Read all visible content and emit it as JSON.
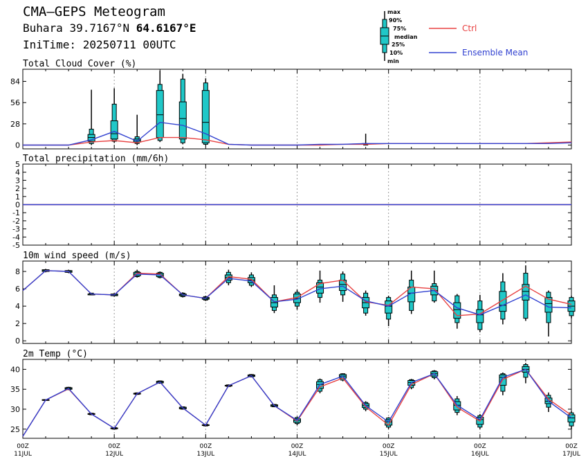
{
  "header": {
    "title": "CMA—GEPS Meteogram",
    "location_name": "Buhara",
    "lat": "39.7167°N",
    "lon": "64.6167°E",
    "init_time": "IniTime: 20250711 00UTC"
  },
  "legend": {
    "box_labels": [
      "max",
      "90%",
      "75%",
      "median",
      "25%",
      "10%",
      "min"
    ],
    "ctrl_label": "Ctrl",
    "mean_label": "Ensemble Mean",
    "ctrl_color": "#e84040",
    "mean_color": "#3040d0",
    "box_color": "#20c8c8"
  },
  "x_axis": {
    "ticks": [
      {
        "step": 0,
        "top": "00Z",
        "bottom": "11JUL"
      },
      {
        "step": 4,
        "top": "00Z",
        "bottom": "12JUL"
      },
      {
        "step": 8,
        "top": "00Z",
        "bottom": "13JUL"
      },
      {
        "step": 12,
        "top": "00Z",
        "bottom": "14JUL"
      },
      {
        "step": 16,
        "top": "00Z",
        "bottom": "15JUL"
      },
      {
        "step": 20,
        "top": "00Z",
        "bottom": "16JUL"
      },
      {
        "step": 24,
        "top": "00Z",
        "bottom": "17JUL"
      }
    ],
    "step_hours": 6
  },
  "chart_data": [
    {
      "type": "box",
      "title": "Total Cloud Cover (%)",
      "ylim": [
        -5,
        100
      ],
      "yticks": [
        0,
        28,
        56,
        84
      ],
      "steps": [
        0,
        1,
        2,
        3,
        4,
        5,
        6,
        7,
        8,
        9,
        10,
        11,
        12,
        13,
        14,
        15,
        16,
        17,
        18,
        19,
        20,
        21,
        22,
        23,
        24
      ],
      "ctrl": [
        0,
        0,
        0,
        4,
        6,
        3,
        10,
        10,
        7,
        1,
        0,
        0,
        0,
        0,
        1,
        1,
        2,
        2,
        2,
        2,
        2,
        2,
        2,
        3,
        4
      ],
      "mean": [
        0,
        0,
        0,
        7,
        18,
        5,
        30,
        26,
        15,
        1,
        0,
        0,
        0,
        1,
        1,
        2,
        2,
        2,
        2,
        2,
        2,
        2,
        2,
        2,
        3
      ],
      "boxes": [
        {
          "step": 3,
          "min": 0,
          "p10": 2,
          "p25": 5,
          "median": 10,
          "p75": 14,
          "p90": 21,
          "max": 73
        },
        {
          "step": 4,
          "min": 3,
          "p10": 5,
          "p25": 8,
          "median": 15,
          "p75": 32,
          "p90": 54,
          "max": 75
        },
        {
          "step": 5,
          "min": 0,
          "p10": 2,
          "p25": 4,
          "median": 6,
          "p75": 8,
          "p90": 11,
          "max": 40
        },
        {
          "step": 6,
          "min": 4,
          "p10": 6,
          "p25": 10,
          "median": 40,
          "p75": 72,
          "p90": 80,
          "max": 98
        },
        {
          "step": 7,
          "min": 1,
          "p10": 3,
          "p25": 8,
          "median": 35,
          "p75": 57,
          "p90": 87,
          "max": 94
        },
        {
          "step": 8,
          "min": 0,
          "p10": 1,
          "p25": 3,
          "median": 30,
          "p75": 72,
          "p90": 82,
          "max": 88
        },
        {
          "step": 15,
          "min": 0,
          "p10": 0,
          "p25": 1,
          "median": 1,
          "p75": 2,
          "p90": 2,
          "max": 15
        }
      ]
    },
    {
      "type": "line",
      "title": "Total precipitation (mm/6h)",
      "ylim": [
        -5,
        5
      ],
      "yticks": [
        -5,
        -4,
        -3,
        -2,
        -1,
        0,
        1,
        2,
        3,
        4,
        5
      ],
      "steps": [
        0,
        1,
        2,
        3,
        4,
        5,
        6,
        7,
        8,
        9,
        10,
        11,
        12,
        13,
        14,
        15,
        16,
        17,
        18,
        19,
        20,
        21,
        22,
        23,
        24
      ],
      "ctrl": [
        0,
        0,
        0,
        0,
        0,
        0,
        0,
        0,
        0,
        0,
        0,
        0,
        0,
        0,
        0,
        0,
        0,
        0,
        0,
        0,
        0,
        0,
        0,
        0,
        0
      ],
      "mean": [
        0,
        0,
        0,
        0,
        0,
        0,
        0,
        0,
        0,
        0,
        0,
        0,
        0,
        0,
        0,
        0,
        0,
        0,
        0,
        0,
        0,
        0,
        0,
        0,
        0
      ],
      "boxes": []
    },
    {
      "type": "box",
      "title": "10m wind speed (m/s)",
      "ylim": [
        -0.3,
        9.2
      ],
      "yticks": [
        0,
        2,
        4,
        6,
        8
      ],
      "steps": [
        0,
        1,
        2,
        3,
        4,
        5,
        6,
        7,
        8,
        9,
        10,
        11,
        12,
        13,
        14,
        15,
        16,
        17,
        18,
        19,
        20,
        21,
        22,
        23,
        24
      ],
      "ctrl": [
        5.8,
        8.1,
        8.0,
        5.4,
        5.3,
        7.8,
        7.7,
        5.3,
        4.9,
        7.4,
        7.1,
        4.5,
        5.0,
        6.6,
        7.0,
        4.5,
        4.1,
        6.2,
        6.0,
        2.9,
        3.1,
        4.7,
        6.3,
        4.8,
        4.2
      ],
      "mean": [
        5.8,
        8.1,
        8.0,
        5.4,
        5.3,
        7.7,
        7.6,
        5.3,
        4.9,
        7.2,
        6.9,
        4.5,
        4.8,
        6.0,
        6.3,
        4.6,
        4.0,
        5.5,
        5.8,
        3.8,
        3.0,
        4.1,
        5.3,
        3.9,
        3.8
      ],
      "boxes": [
        {
          "step": 1,
          "min": 7.9,
          "p10": 8.0,
          "p25": 8.0,
          "median": 8.1,
          "p75": 8.2,
          "p90": 8.2,
          "max": 8.3
        },
        {
          "step": 2,
          "min": 7.8,
          "p10": 7.9,
          "p25": 7.9,
          "median": 8.0,
          "p75": 8.1,
          "p90": 8.1,
          "max": 8.2
        },
        {
          "step": 3,
          "min": 5.3,
          "p10": 5.3,
          "p25": 5.3,
          "median": 5.4,
          "p75": 5.4,
          "p90": 5.5,
          "max": 5.5
        },
        {
          "step": 4,
          "min": 5.1,
          "p10": 5.2,
          "p25": 5.2,
          "median": 5.3,
          "p75": 5.4,
          "p90": 5.4,
          "max": 5.5
        },
        {
          "step": 5,
          "min": 7.3,
          "p10": 7.4,
          "p25": 7.5,
          "median": 7.7,
          "p75": 7.9,
          "p90": 8.0,
          "max": 8.2
        },
        {
          "step": 6,
          "min": 7.2,
          "p10": 7.3,
          "p25": 7.4,
          "median": 7.6,
          "p75": 7.8,
          "p90": 7.9,
          "max": 8.0
        },
        {
          "step": 7,
          "min": 5.0,
          "p10": 5.1,
          "p25": 5.2,
          "median": 5.3,
          "p75": 5.4,
          "p90": 5.5,
          "max": 5.6
        },
        {
          "step": 8,
          "min": 4.6,
          "p10": 4.7,
          "p25": 4.8,
          "median": 4.9,
          "p75": 5.0,
          "p90": 5.1,
          "max": 5.2
        },
        {
          "step": 9,
          "min": 6.4,
          "p10": 6.7,
          "p25": 7.0,
          "median": 7.3,
          "p75": 7.6,
          "p90": 7.9,
          "max": 8.2
        },
        {
          "step": 10,
          "min": 6.2,
          "p10": 6.4,
          "p25": 6.7,
          "median": 7.0,
          "p75": 7.3,
          "p90": 7.6,
          "max": 7.9
        },
        {
          "step": 11,
          "min": 3.2,
          "p10": 3.5,
          "p25": 3.9,
          "median": 4.4,
          "p75": 5.0,
          "p90": 5.3,
          "max": 6.4
        },
        {
          "step": 12,
          "min": 3.6,
          "p10": 4.0,
          "p25": 4.4,
          "median": 4.9,
          "p75": 5.4,
          "p90": 5.6,
          "max": 5.9
        },
        {
          "step": 13,
          "min": 4.4,
          "p10": 5.0,
          "p25": 5.5,
          "median": 6.2,
          "p75": 6.7,
          "p90": 7.0,
          "max": 8.1
        },
        {
          "step": 14,
          "min": 4.5,
          "p10": 5.3,
          "p25": 5.8,
          "median": 6.5,
          "p75": 7.0,
          "p90": 7.7,
          "max": 8.0
        },
        {
          "step": 15,
          "min": 2.9,
          "p10": 3.2,
          "p25": 3.8,
          "median": 4.4,
          "p75": 5.0,
          "p90": 5.5,
          "max": 5.8
        },
        {
          "step": 16,
          "min": 1.7,
          "p10": 2.5,
          "p25": 3.2,
          "median": 4.0,
          "p75": 4.6,
          "p90": 5.0,
          "max": 5.2
        },
        {
          "step": 17,
          "min": 3.1,
          "p10": 3.5,
          "p25": 4.5,
          "median": 5.5,
          "p75": 6.2,
          "p90": 7.0,
          "max": 8.1
        },
        {
          "step": 18,
          "min": 4.4,
          "p10": 4.6,
          "p25": 5.3,
          "median": 5.8,
          "p75": 6.3,
          "p90": 6.6,
          "max": 8.1
        },
        {
          "step": 19,
          "min": 1.4,
          "p10": 2.1,
          "p25": 2.6,
          "median": 3.6,
          "p75": 4.4,
          "p90": 5.2,
          "max": 5.4
        },
        {
          "step": 20,
          "min": 1.0,
          "p10": 1.3,
          "p25": 2.1,
          "median": 3.0,
          "p75": 3.6,
          "p90": 4.6,
          "max": 5.3
        },
        {
          "step": 21,
          "min": 1.9,
          "p10": 2.5,
          "p25": 3.4,
          "median": 4.1,
          "p75": 5.7,
          "p90": 6.8,
          "max": 7.8
        },
        {
          "step": 22,
          "min": 2.3,
          "p10": 2.6,
          "p25": 4.7,
          "median": 5.7,
          "p75": 6.5,
          "p90": 7.8,
          "max": 8.7
        },
        {
          "step": 23,
          "min": 0.5,
          "p10": 2.1,
          "p25": 3.3,
          "median": 4.3,
          "p75": 5.0,
          "p90": 5.6,
          "max": 5.8
        },
        {
          "step": 24,
          "min": 2.6,
          "p10": 2.9,
          "p25": 3.4,
          "median": 4.0,
          "p75": 4.6,
          "p90": 5.0,
          "max": 5.2
        }
      ]
    },
    {
      "type": "box",
      "title": "2m Temp (°C)",
      "ylim": [
        22.7,
        42.5
      ],
      "yticks": [
        25,
        30,
        35,
        40
      ],
      "steps": [
        0,
        1,
        2,
        3,
        4,
        5,
        6,
        7,
        8,
        9,
        10,
        11,
        12,
        13,
        14,
        15,
        16,
        17,
        18,
        19,
        20,
        21,
        22,
        23,
        24
      ],
      "ctrl": [
        23.2,
        32.3,
        35.1,
        28.8,
        25.2,
        33.9,
        36.8,
        30.3,
        26.0,
        35.9,
        38.4,
        30.9,
        27.0,
        35.6,
        37.8,
        30.6,
        26.0,
        36.2,
        38.9,
        30.5,
        27.0,
        37.5,
        40.0,
        32.5,
        28.5
      ],
      "mean": [
        23.2,
        32.3,
        35.2,
        28.8,
        25.2,
        33.9,
        36.8,
        30.3,
        26.0,
        35.9,
        38.4,
        30.9,
        27.2,
        36.2,
        38.3,
        30.9,
        26.8,
        36.7,
        38.9,
        31.0,
        27.4,
        38.0,
        40.0,
        32.0,
        27.8
      ],
      "boxes": [
        {
          "step": 1,
          "min": 32.1,
          "p10": 32.2,
          "p25": 32.2,
          "median": 32.3,
          "p75": 32.4,
          "p90": 32.4,
          "max": 32.5
        },
        {
          "step": 2,
          "min": 34.8,
          "p10": 34.9,
          "p25": 35.0,
          "median": 35.2,
          "p75": 35.4,
          "p90": 35.5,
          "max": 35.6
        },
        {
          "step": 3,
          "min": 28.5,
          "p10": 28.6,
          "p25": 28.7,
          "median": 28.8,
          "p75": 28.9,
          "p90": 29.0,
          "max": 29.1
        },
        {
          "step": 4,
          "min": 24.9,
          "p10": 25.0,
          "p25": 25.1,
          "median": 25.2,
          "p75": 25.3,
          "p90": 25.4,
          "max": 25.5
        },
        {
          "step": 5,
          "min": 33.6,
          "p10": 33.7,
          "p25": 33.8,
          "median": 33.9,
          "p75": 34.0,
          "p90": 34.1,
          "max": 34.2
        },
        {
          "step": 6,
          "min": 36.4,
          "p10": 36.5,
          "p25": 36.6,
          "median": 36.8,
          "p75": 37.0,
          "p90": 37.1,
          "max": 37.2
        },
        {
          "step": 7,
          "min": 29.9,
          "p10": 30.0,
          "p25": 30.1,
          "median": 30.3,
          "p75": 30.5,
          "p90": 30.6,
          "max": 30.7
        },
        {
          "step": 8,
          "min": 25.7,
          "p10": 25.8,
          "p25": 25.9,
          "median": 26.0,
          "p75": 26.1,
          "p90": 26.2,
          "max": 26.3
        },
        {
          "step": 9,
          "min": 35.6,
          "p10": 35.7,
          "p25": 35.8,
          "median": 35.9,
          "p75": 36.0,
          "p90": 36.1,
          "max": 36.2
        },
        {
          "step": 10,
          "min": 38.0,
          "p10": 38.1,
          "p25": 38.2,
          "median": 38.4,
          "p75": 38.6,
          "p90": 38.7,
          "max": 38.8
        },
        {
          "step": 11,
          "min": 30.5,
          "p10": 30.6,
          "p25": 30.7,
          "median": 30.9,
          "p75": 31.1,
          "p90": 31.2,
          "max": 31.3
        },
        {
          "step": 12,
          "min": 26.0,
          "p10": 26.4,
          "p25": 26.7,
          "median": 27.2,
          "p75": 27.6,
          "p90": 27.9,
          "max": 28.2
        },
        {
          "step": 13,
          "min": 34.0,
          "p10": 34.5,
          "p25": 35.2,
          "median": 36.2,
          "p75": 36.9,
          "p90": 37.4,
          "max": 37.7
        },
        {
          "step": 14,
          "min": 37.0,
          "p10": 37.3,
          "p25": 37.8,
          "median": 38.3,
          "p75": 38.7,
          "p90": 38.9,
          "max": 39.0
        },
        {
          "step": 15,
          "min": 29.5,
          "p10": 30.0,
          "p25": 30.4,
          "median": 30.9,
          "p75": 31.4,
          "p90": 31.7,
          "max": 32.0
        },
        {
          "step": 16,
          "min": 25.0,
          "p10": 25.5,
          "p25": 26.0,
          "median": 26.8,
          "p75": 27.4,
          "p90": 27.8,
          "max": 28.0
        },
        {
          "step": 17,
          "min": 35.0,
          "p10": 35.4,
          "p25": 36.0,
          "median": 36.7,
          "p75": 37.2,
          "p90": 37.4,
          "max": 37.6
        },
        {
          "step": 18,
          "min": 37.5,
          "p10": 37.9,
          "p25": 38.3,
          "median": 38.9,
          "p75": 39.4,
          "p90": 39.6,
          "max": 39.8
        },
        {
          "step": 19,
          "min": 28.5,
          "p10": 29.2,
          "p25": 29.8,
          "median": 31.0,
          "p75": 31.9,
          "p90": 32.6,
          "max": 33.3
        },
        {
          "step": 20,
          "min": 25.0,
          "p10": 25.5,
          "p25": 26.2,
          "median": 27.4,
          "p75": 28.0,
          "p90": 28.4,
          "max": 28.8
        },
        {
          "step": 21,
          "min": 33.5,
          "p10": 34.5,
          "p25": 36.0,
          "median": 38.0,
          "p75": 38.6,
          "p90": 38.9,
          "max": 39.2
        },
        {
          "step": 22,
          "min": 36.5,
          "p10": 38.0,
          "p25": 39.3,
          "median": 40.0,
          "p75": 40.7,
          "p90": 41.2,
          "max": 41.6
        },
        {
          "step": 23,
          "min": 29.3,
          "p10": 30.5,
          "p25": 31.4,
          "median": 32.0,
          "p75": 32.8,
          "p90": 33.5,
          "max": 34.2
        },
        {
          "step": 24,
          "min": 25.0,
          "p10": 25.8,
          "p25": 26.8,
          "median": 27.8,
          "p75": 28.6,
          "p90": 29.1,
          "max": 29.5
        }
      ]
    }
  ]
}
